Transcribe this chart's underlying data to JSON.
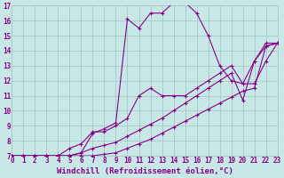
{
  "xlabel": "Windchill (Refroidissement éolien,°C)",
  "bg_color": "#c8e8e8",
  "grid_color": "#a8c8c8",
  "line_color": "#880088",
  "xlim": [
    0,
    23
  ],
  "ylim": [
    7,
    17
  ],
  "xticks": [
    0,
    1,
    2,
    3,
    4,
    5,
    6,
    7,
    8,
    9,
    10,
    11,
    12,
    13,
    14,
    15,
    16,
    17,
    18,
    19,
    20,
    21,
    22,
    23
  ],
  "yticks": [
    7,
    8,
    9,
    10,
    11,
    12,
    13,
    14,
    15,
    16,
    17
  ],
  "line1_x": [
    0,
    1,
    2,
    3,
    4,
    5,
    6,
    7,
    8,
    9,
    10,
    11,
    12,
    13,
    14,
    15,
    16,
    17,
    18,
    19,
    20,
    21,
    22,
    23
  ],
  "line1_y": [
    7.0,
    7.0,
    7.0,
    7.0,
    7.0,
    7.0,
    7.0,
    7.0,
    7.1,
    7.2,
    7.5,
    7.8,
    8.1,
    8.5,
    8.9,
    9.3,
    9.7,
    10.1,
    10.5,
    10.9,
    11.3,
    11.5,
    14.3,
    14.5
  ],
  "line2_x": [
    0,
    1,
    2,
    3,
    4,
    5,
    6,
    7,
    8,
    9,
    10,
    11,
    12,
    13,
    14,
    15,
    16,
    17,
    18,
    19,
    20,
    21,
    22,
    23
  ],
  "line2_y": [
    7.0,
    7.0,
    7.0,
    7.0,
    7.0,
    7.0,
    7.2,
    7.5,
    7.7,
    7.9,
    8.3,
    8.7,
    9.1,
    9.5,
    10.0,
    10.5,
    11.0,
    11.5,
    12.0,
    12.5,
    10.7,
    13.3,
    14.3,
    14.5
  ],
  "line3_x": [
    0,
    1,
    2,
    3,
    4,
    5,
    6,
    7,
    8,
    9,
    10,
    11,
    12,
    13,
    14,
    15,
    16,
    17,
    18,
    19,
    20,
    21,
    22,
    23
  ],
  "line3_y": [
    7.0,
    7.0,
    7.0,
    7.0,
    7.0,
    7.5,
    7.8,
    8.6,
    8.6,
    9.0,
    9.5,
    11.0,
    11.5,
    11.0,
    11.0,
    11.0,
    11.5,
    12.0,
    12.5,
    13.0,
    11.8,
    11.8,
    13.3,
    14.5
  ],
  "line4_x": [
    0,
    1,
    2,
    3,
    4,
    5,
    6,
    7,
    8,
    9,
    10,
    11,
    12,
    13,
    14,
    15,
    16,
    17,
    18,
    19,
    20,
    21,
    22,
    23
  ],
  "line4_y": [
    7.0,
    7.0,
    7.0,
    7.0,
    7.0,
    7.0,
    7.2,
    8.5,
    8.8,
    9.2,
    16.1,
    15.5,
    16.5,
    16.5,
    17.2,
    17.2,
    16.5,
    15.0,
    13.0,
    12.0,
    11.8,
    13.3,
    14.5,
    14.5
  ],
  "font_color": "#880088",
  "tick_fontsize": 5.5,
  "label_fontsize": 6.5
}
